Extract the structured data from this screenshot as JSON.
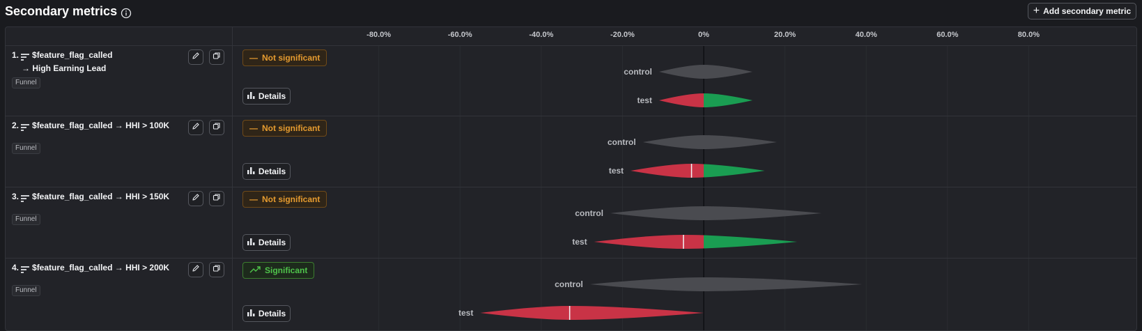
{
  "header": {
    "title": "Secondary metrics",
    "add_button_label": "Add secondary metric"
  },
  "axis": {
    "ticks": [
      "-80.0%",
      "-60.0%",
      "-40.0%",
      "-20.0%",
      "0%",
      "20.0%",
      "40.0%",
      "60.0%",
      "80.0%"
    ],
    "tick_values": [
      -80,
      -60,
      -40,
      -20,
      0,
      20,
      40,
      60,
      80
    ],
    "units": "%"
  },
  "metrics": [
    {
      "number": "1.",
      "line1": "$feature_flag_called",
      "line2": "→ High Earning Lead",
      "tag": "Funnel",
      "significance": "Not significant",
      "significant": false,
      "details_label": "Details",
      "control_label": "control",
      "test_label": "test",
      "control": {
        "min": -11,
        "max": 12,
        "mean": 0
      },
      "test": {
        "min": -11,
        "max": 12,
        "mean": 0
      }
    },
    {
      "number": "2.",
      "line1": "$feature_flag_called → HHI > 100K",
      "line2": "",
      "tag": "Funnel",
      "significance": "Not significant",
      "significant": false,
      "details_label": "Details",
      "control_label": "control",
      "test_label": "test",
      "control": {
        "min": -15,
        "max": 18,
        "mean": 0
      },
      "test": {
        "min": -18,
        "max": 15,
        "mean": -3
      }
    },
    {
      "number": "3.",
      "line1": "$feature_flag_called → HHI > 150K",
      "line2": "",
      "tag": "Funnel",
      "significance": "Not significant",
      "significant": false,
      "details_label": "Details",
      "control_label": "control",
      "test_label": "test",
      "control": {
        "min": -23,
        "max": 29,
        "mean": 0
      },
      "test": {
        "min": -27,
        "max": 23,
        "mean": -5
      }
    },
    {
      "number": "4.",
      "line1": "$feature_flag_called → HHI > 200K",
      "line2": "",
      "tag": "Funnel",
      "significance": "Significant",
      "significant": true,
      "details_label": "Details",
      "control_label": "control",
      "test_label": "test",
      "control": {
        "min": -28,
        "max": 39,
        "mean": 0
      },
      "test": {
        "min": -55,
        "max": 0,
        "mean": -33
      }
    }
  ],
  "colors": {
    "control": "#4a4b50",
    "negative": "#c93346",
    "positive": "#1a9d52",
    "zero_line": "#0e0f12",
    "not_significant": "#e59b2f",
    "significant": "#4fc34b"
  }
}
